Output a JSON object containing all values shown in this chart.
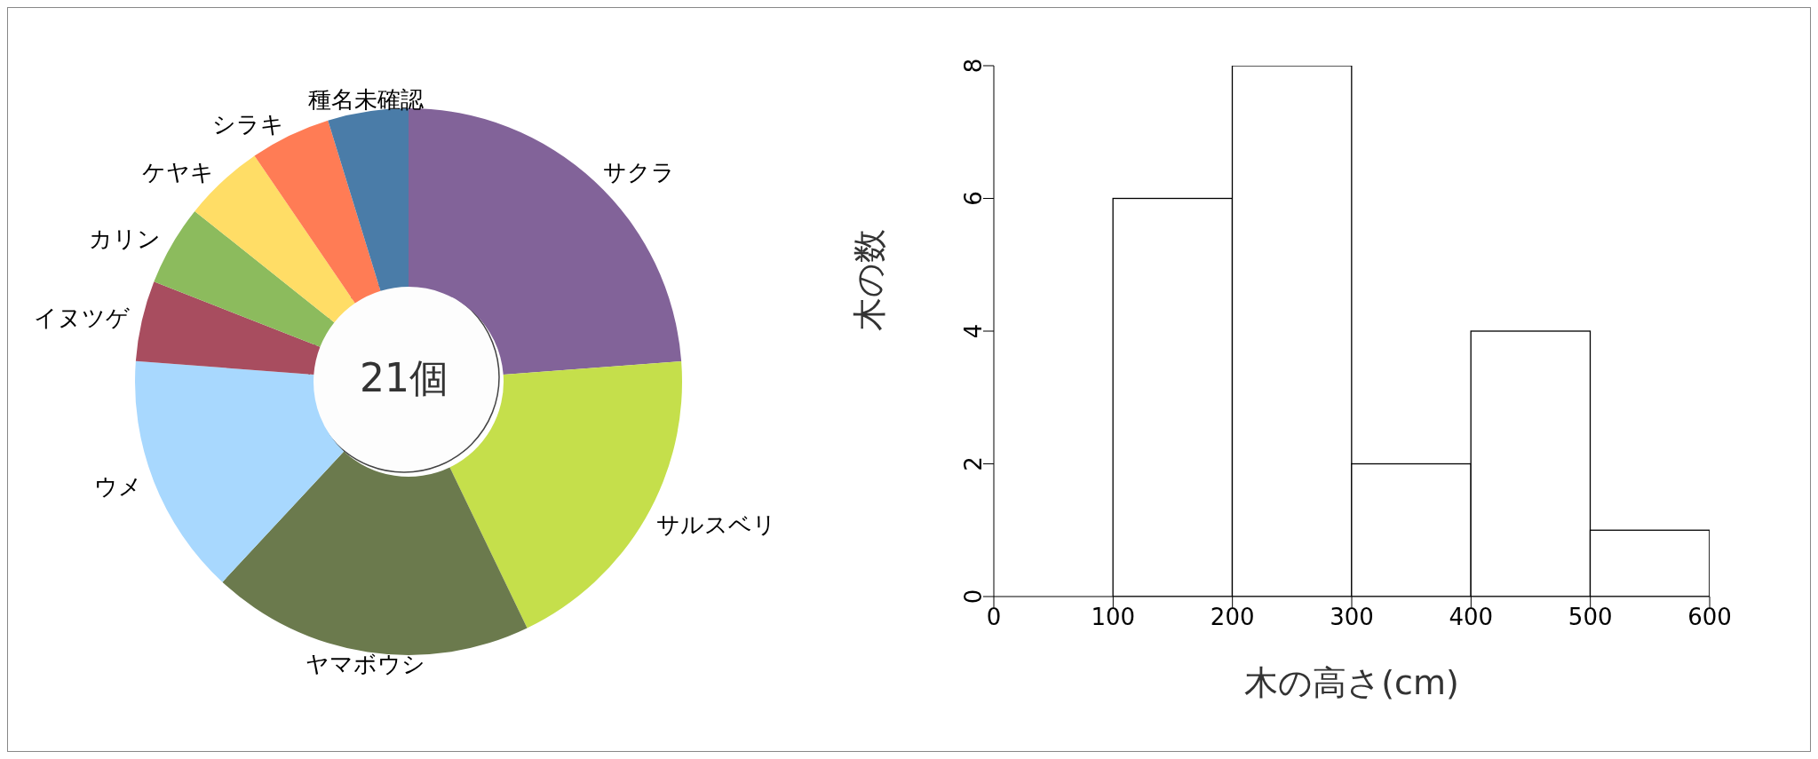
{
  "chart_data": [
    {
      "type": "donut",
      "categories": [
        "サクラ",
        "サルスベリ",
        "ヤマボウシ",
        "ウメ",
        "イヌツゲ",
        "カリン",
        "ケヤキ",
        "シラキ",
        "種名未確認"
      ],
      "values": [
        23.81,
        19.05,
        19.05,
        14.29,
        4.76,
        4.76,
        4.76,
        4.76,
        4.76
      ],
      "colors": [
        "#826399",
        "#c5df4b",
        "#6b7a4d",
        "#a8d8fe",
        "#a84d5f",
        "#8cbb5d",
        "#ffdd66",
        "#ff7c55",
        "#4a7ca8"
      ],
      "annotations": [
        "21個"
      ]
    },
    {
      "type": "histogram",
      "xlabel": "木の高さ(cm)",
      "ylabel": "木の数",
      "bins": [
        100,
        200,
        300,
        400,
        500,
        600
      ],
      "values": [
        6,
        8,
        2,
        4,
        1
      ],
      "color": "#ffffff",
      "xlim": [
        0,
        600
      ],
      "xticks": [
        0,
        100,
        200,
        300,
        400,
        500,
        600
      ],
      "ylim": [
        0,
        8
      ],
      "yticks": [
        0,
        2,
        4,
        6,
        8
      ],
      "grid": false
    }
  ]
}
